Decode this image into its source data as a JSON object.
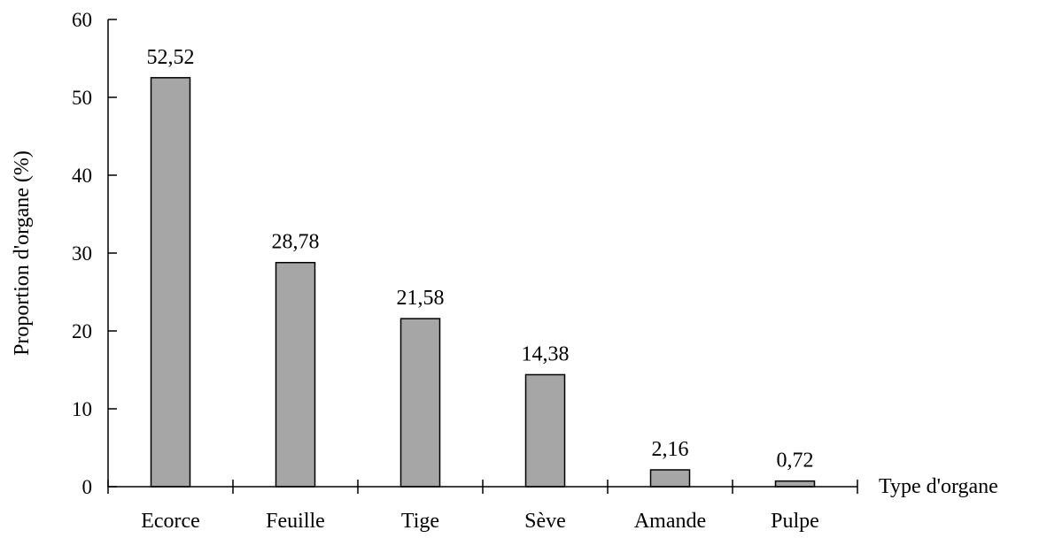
{
  "chart_data": {
    "type": "bar",
    "categories": [
      "Ecorce",
      "Feuille",
      "Tige",
      "Sève",
      "Amande",
      "Pulpe"
    ],
    "values": [
      52.52,
      28.78,
      21.58,
      14.38,
      2.16,
      0.72
    ],
    "data_labels": [
      "52,52",
      "28,78",
      "21,58",
      "14,38",
      "2,16",
      "0,72"
    ],
    "xlabel": "Type d'organe",
    "ylabel": "Proportion d'organe (%)",
    "ylim": [
      0,
      60
    ],
    "yticks": [
      0,
      10,
      20,
      30,
      40,
      50,
      60
    ],
    "ytick_labels": [
      "0",
      "10",
      "20",
      "30",
      "40",
      "50",
      "60"
    ],
    "grid": false,
    "legend": "none",
    "bar_color": "#a6a6a6"
  }
}
